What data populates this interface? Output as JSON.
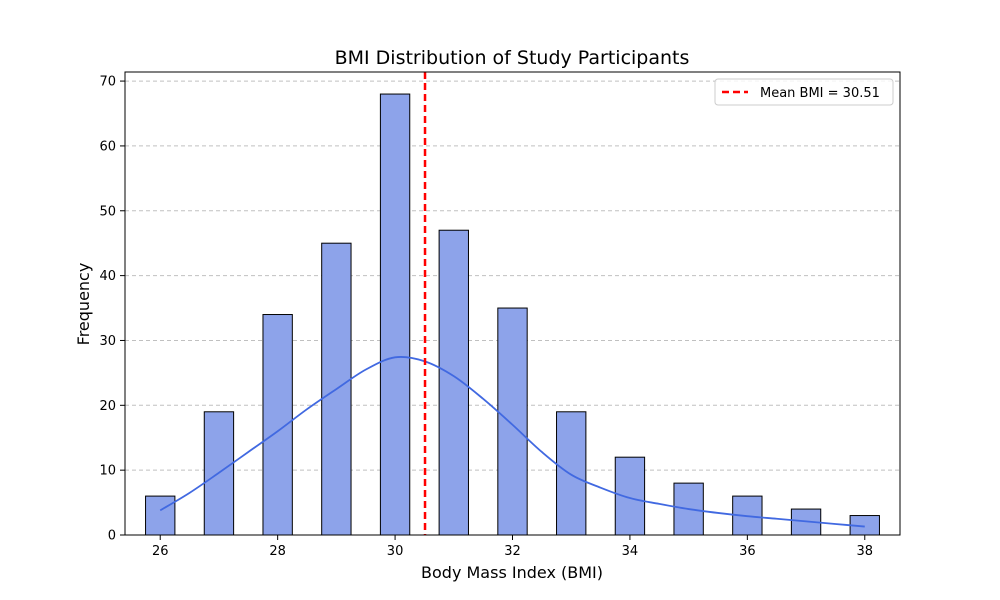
{
  "chart_data": {
    "type": "bar",
    "title": "BMI Distribution of Study Participants",
    "xlabel": "Body Mass Index (BMI)",
    "ylabel": "Frequency",
    "x": [
      26,
      27,
      28,
      29,
      30,
      31,
      32,
      33,
      34,
      35,
      36,
      37,
      38
    ],
    "values": [
      6,
      19,
      34,
      45,
      68,
      47,
      35,
      19,
      12,
      8,
      6,
      4,
      3
    ],
    "bar_width": 0.5,
    "xlim": [
      25.4,
      38.6
    ],
    "ylim": [
      0,
      71.4
    ],
    "xticks": [
      26,
      28,
      30,
      32,
      34,
      36,
      38
    ],
    "yticks": [
      0,
      10,
      20,
      30,
      40,
      50,
      60,
      70
    ],
    "grid": "y-dashed",
    "kde": {
      "x": [
        26,
        26.5,
        27,
        27.5,
        28,
        28.5,
        29,
        29.5,
        30,
        30.5,
        31,
        31.5,
        32,
        32.5,
        33,
        33.5,
        34,
        34.5,
        35,
        35.5,
        36,
        36.5,
        37,
        37.5,
        38
      ],
      "y": [
        3.8,
        6.5,
        9.6,
        12.8,
        16.0,
        19.4,
        22.5,
        25.5,
        27.4,
        26.8,
        24.5,
        21.0,
        17.0,
        12.8,
        9.3,
        7.3,
        5.7,
        4.8,
        4.0,
        3.4,
        2.9,
        2.5,
        2.1,
        1.7,
        1.3
      ]
    },
    "mean_line": {
      "x": 30.51,
      "label": "Mean BMI = 30.51"
    },
    "legend_position": "top-right",
    "colors": {
      "bar_fill": "#8da3ea",
      "bar_edge": "#000000",
      "kde_line": "#4169e1",
      "mean_line": "#ff0000",
      "grid": "#c0c0c0"
    }
  }
}
